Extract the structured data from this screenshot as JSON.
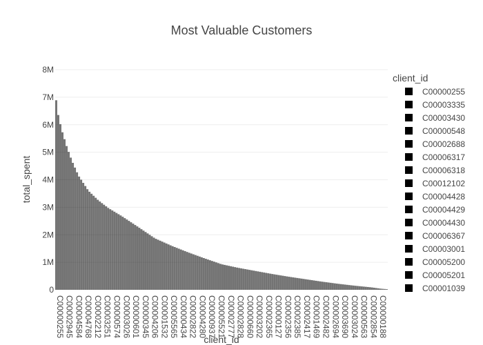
{
  "chart_data": {
    "type": "bar",
    "title": "Most Valuable Customers",
    "xlabel": "client_id",
    "ylabel": "total_spent",
    "ylim": [
      0,
      8000000
    ],
    "y_ticks": [
      0,
      1000000,
      2000000,
      3000000,
      4000000,
      5000000,
      6000000,
      7000000,
      8000000
    ],
    "y_tick_labels": [
      "0",
      "1M",
      "2M",
      "3M",
      "4M",
      "5M",
      "6M",
      "7M",
      "8M"
    ],
    "x_tick_labels": [
      "C00000255",
      "C00002945",
      "C00004584",
      "C00004768",
      "C00002212",
      "C00003251",
      "C00000574",
      "C00003026",
      "C00000601",
      "C00000345",
      "C00004206",
      "C00001532",
      "C00005565",
      "C00000434",
      "C00002822",
      "C00004280",
      "C00000937",
      "C00005521",
      "C00002777",
      "C00002828",
      "C00000660",
      "C00003202",
      "C00002365",
      "C00000127",
      "C00002356",
      "C00002385",
      "C00002417",
      "C00001469",
      "C00002482",
      "C00002694",
      "C00003690",
      "C00003024",
      "C00000563",
      "C00002854",
      "C00000188"
    ],
    "bar_color": "#000000",
    "grid": true,
    "legend_position": "right",
    "values_profile": {
      "x_fraction": [
        0.0,
        0.003,
        0.01,
        0.02,
        0.035,
        0.05,
        0.07,
        0.1,
        0.13,
        0.16,
        0.2,
        0.25,
        0.3,
        0.35,
        0.4,
        0.45,
        0.5,
        0.55,
        0.6,
        0.65,
        0.7,
        0.75,
        0.8,
        0.85,
        0.9,
        0.95,
        0.98,
        1.0
      ],
      "total_spent": [
        7600000,
        6900000,
        6300000,
        5800000,
        5200000,
        4700000,
        4150000,
        3600000,
        3250000,
        2970000,
        2680000,
        2280000,
        1870000,
        1600000,
        1360000,
        1140000,
        930000,
        800000,
        690000,
        580000,
        480000,
        390000,
        300000,
        220000,
        150000,
        90000,
        40000,
        20000
      ]
    },
    "legend": {
      "title": "client_id",
      "entries": [
        "C00000255",
        "C00003335",
        "C00003430",
        "C00000548",
        "C00002688",
        "C00006317",
        "C00006318",
        "C00012102",
        "C00004428",
        "C00004429",
        "C00004430",
        "C00006367",
        "C00003001",
        "C00005200",
        "C00005201",
        "C00001039"
      ]
    }
  }
}
